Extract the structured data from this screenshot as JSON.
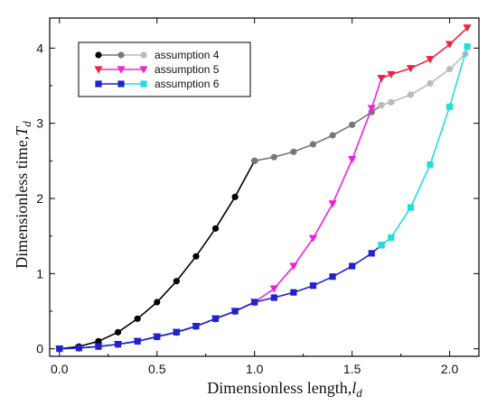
{
  "chart_data": {
    "type": "line",
    "xlabel": "Dimensionless length,",
    "xlabel_var": "l",
    "xlabel_sub": "d",
    "ylabel": "Dimensionless time,",
    "ylabel_var": "T",
    "ylabel_sub": "d",
    "xlim": [
      -0.05,
      2.15
    ],
    "ylim": [
      -0.1,
      4.4
    ],
    "xticks": [
      0.0,
      0.5,
      1.0,
      1.5,
      2.0
    ],
    "xtick_labels": [
      "0.0",
      "0.5",
      "1.0",
      "1.5",
      "2.0"
    ],
    "yticks": [
      0,
      1,
      2,
      3,
      4
    ],
    "ytick_labels": [
      "0",
      "1",
      "2",
      "3",
      "4"
    ],
    "grid": false,
    "legend_position": "top-left",
    "series": [
      {
        "name": "assumption 4",
        "marker": "circle",
        "segments": [
          {
            "color": "#000000",
            "x": [
              0.0,
              0.1,
              0.2,
              0.3,
              0.4,
              0.5,
              0.6,
              0.7,
              0.8,
              0.9,
              1.0
            ],
            "y": [
              0.0,
              0.03,
              0.1,
              0.22,
              0.4,
              0.62,
              0.9,
              1.23,
              1.6,
              2.02,
              2.5
            ]
          },
          {
            "color": "#777777",
            "x": [
              1.0,
              1.1,
              1.2,
              1.3,
              1.4,
              1.5,
              1.6,
              1.65
            ],
            "y": [
              2.5,
              2.55,
              2.62,
              2.72,
              2.84,
              2.98,
              3.15,
              3.24
            ]
          },
          {
            "color": "#bbbbbb",
            "x": [
              1.65,
              1.7,
              1.8,
              1.9,
              2.0,
              2.08
            ],
            "y": [
              3.24,
              3.28,
              3.38,
              3.53,
              3.72,
              3.92
            ]
          }
        ]
      },
      {
        "name": "assumption 5",
        "marker": "triangle-down",
        "segments": [
          {
            "color": "#2222cc",
            "x": [
              0.0,
              0.1,
              0.2,
              0.3,
              0.4,
              0.5,
              0.6,
              0.7,
              0.8,
              0.9,
              1.0
            ],
            "y": [
              0.0,
              0.01,
              0.03,
              0.06,
              0.1,
              0.16,
              0.22,
              0.3,
              0.4,
              0.5,
              0.62
            ]
          },
          {
            "color": "#ee22dd",
            "x": [
              1.0,
              1.1,
              1.2,
              1.3,
              1.4,
              1.5,
              1.6,
              1.65
            ],
            "y": [
              0.62,
              0.8,
              1.1,
              1.47,
              1.93,
              2.52,
              3.2,
              3.6
            ]
          },
          {
            "color": "#ee2244",
            "x": [
              1.65,
              1.7,
              1.8,
              1.9,
              2.0,
              2.09
            ],
            "y": [
              3.6,
              3.65,
              3.73,
              3.85,
              4.05,
              4.27
            ]
          }
        ]
      },
      {
        "name": "assumption 6",
        "marker": "square",
        "segments": [
          {
            "color": "#2222cc",
            "x": [
              0.0,
              0.1,
              0.2,
              0.3,
              0.4,
              0.5,
              0.6,
              0.7,
              0.8,
              0.9,
              1.0,
              1.1,
              1.2,
              1.3,
              1.4,
              1.5,
              1.6,
              1.65
            ],
            "y": [
              0.0,
              0.01,
              0.03,
              0.06,
              0.1,
              0.16,
              0.22,
              0.3,
              0.4,
              0.5,
              0.62,
              0.68,
              0.75,
              0.84,
              0.96,
              1.1,
              1.27,
              1.38
            ]
          },
          {
            "color": "#22dddd",
            "x": [
              1.65,
              1.7,
              1.8,
              1.9,
              2.0,
              2.09
            ],
            "y": [
              1.38,
              1.48,
              1.88,
              2.45,
              3.22,
              4.02
            ]
          }
        ]
      }
    ],
    "legend": [
      {
        "label": "assumption 4",
        "marker": "circle",
        "colors": [
          "#000000",
          "#777777",
          "#bbbbbb"
        ]
      },
      {
        "label": "assumption 5",
        "marker": "triangle-down",
        "colors": [
          "#ee2244",
          "#ee22dd",
          "#ee22dd"
        ]
      },
      {
        "label": "assumption 6",
        "marker": "square",
        "colors": [
          "#2222cc",
          "#2222cc",
          "#22dddd"
        ]
      }
    ]
  }
}
